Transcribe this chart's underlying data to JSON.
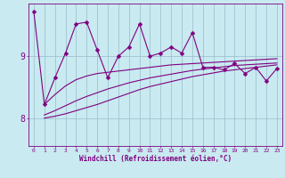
{
  "title": "",
  "xlabel": "Windchill (Refroidissement éolien,°C)",
  "bg_color": "#c8eaf0",
  "line_color": "#800080",
  "grid_color": "#99bbcc",
  "xlim": [
    -0.5,
    23.5
  ],
  "ylim": [
    7.55,
    9.85
  ],
  "xticks": [
    0,
    1,
    2,
    3,
    4,
    5,
    6,
    7,
    8,
    9,
    10,
    11,
    12,
    13,
    14,
    15,
    16,
    17,
    18,
    19,
    20,
    21,
    22,
    23
  ],
  "yticks": [
    8,
    9
  ],
  "main_x": [
    0,
    1,
    2,
    3,
    4,
    5,
    6,
    7,
    8,
    9,
    10,
    11,
    12,
    13,
    14,
    15,
    16,
    17,
    18,
    19,
    20,
    21,
    22,
    23
  ],
  "main_y": [
    9.72,
    8.22,
    8.65,
    9.05,
    9.52,
    9.55,
    9.1,
    8.65,
    9.0,
    9.15,
    9.52,
    9.0,
    9.05,
    9.15,
    9.05,
    9.38,
    8.82,
    8.82,
    8.78,
    8.88,
    8.72,
    8.82,
    8.6,
    8.8
  ],
  "upper_x": [
    1,
    2,
    3,
    4,
    5,
    6,
    7,
    8,
    9,
    10,
    11,
    12,
    13,
    14,
    15,
    16,
    17,
    18,
    19,
    20,
    21,
    22,
    23
  ],
  "upper_y": [
    8.22,
    8.38,
    8.52,
    8.62,
    8.68,
    8.72,
    8.74,
    8.76,
    8.78,
    8.8,
    8.82,
    8.84,
    8.86,
    8.87,
    8.88,
    8.89,
    8.9,
    8.91,
    8.92,
    8.93,
    8.94,
    8.95,
    8.96
  ],
  "mid_x": [
    1,
    2,
    3,
    4,
    5,
    6,
    7,
    8,
    9,
    10,
    11,
    12,
    13,
    14,
    15,
    16,
    17,
    18,
    19,
    20,
    21,
    22,
    23
  ],
  "mid_y": [
    8.05,
    8.12,
    8.2,
    8.28,
    8.35,
    8.41,
    8.47,
    8.52,
    8.57,
    8.61,
    8.65,
    8.68,
    8.71,
    8.74,
    8.77,
    8.79,
    8.81,
    8.83,
    8.85,
    8.86,
    8.87,
    8.88,
    8.89
  ],
  "lower_x": [
    1,
    2,
    3,
    4,
    5,
    6,
    7,
    8,
    9,
    10,
    11,
    12,
    13,
    14,
    15,
    16,
    17,
    18,
    19,
    20,
    21,
    22,
    23
  ],
  "lower_y": [
    8.0,
    8.03,
    8.07,
    8.12,
    8.17,
    8.22,
    8.28,
    8.34,
    8.4,
    8.46,
    8.51,
    8.55,
    8.59,
    8.63,
    8.67,
    8.7,
    8.73,
    8.76,
    8.78,
    8.8,
    8.82,
    8.84,
    8.86
  ],
  "marker_size": 2.5,
  "line_width": 0.8
}
